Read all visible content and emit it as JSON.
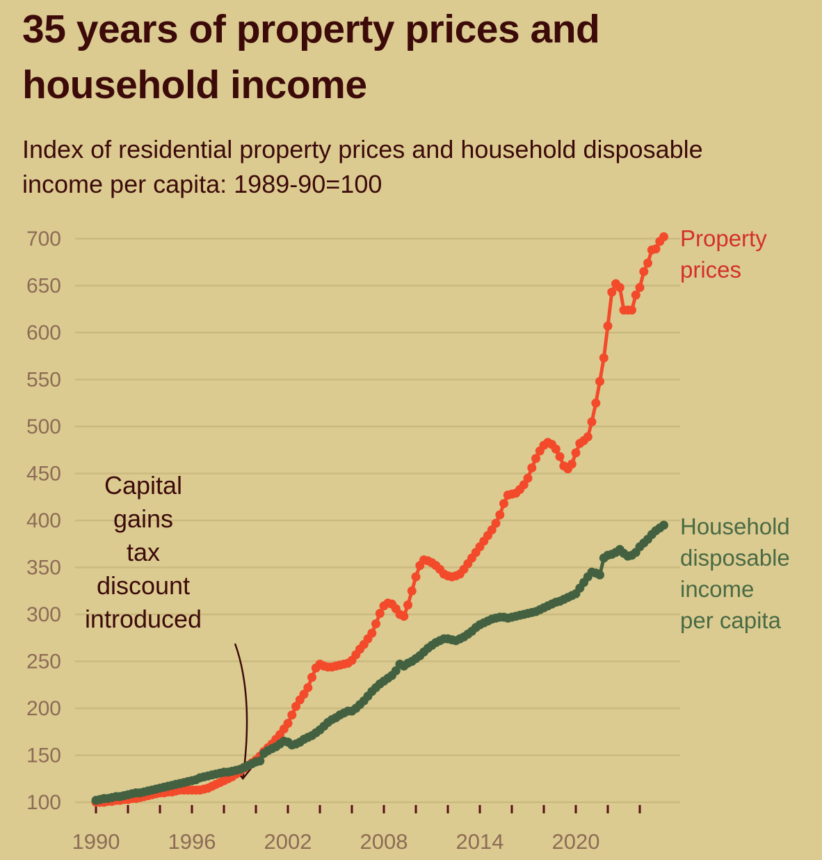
{
  "title": "35 years of property prices and household income",
  "subtitle": "Index of residential property prices and household disposable income per capita: 1989-90=100",
  "chart_data": {
    "type": "line",
    "title": "35 years of property prices and household income",
    "subtitle": "Index of residential property prices and household disposable income per capita: 1989-90=100",
    "xlabel": "",
    "ylabel": "",
    "xlim": [
      1989.2,
      2026.5
    ],
    "ylim": [
      100,
      700
    ],
    "yticks": [
      100,
      150,
      200,
      250,
      300,
      350,
      400,
      450,
      500,
      550,
      600,
      650,
      700
    ],
    "xticks_minor": [
      1990,
      1992,
      1994,
      1996,
      1998,
      2000,
      2002,
      2004,
      2006,
      2008,
      2010,
      2012,
      2014,
      2016,
      2018,
      2020,
      2022,
      2024
    ],
    "xtick_labels": [
      "1990",
      "1996",
      "2002",
      "2008",
      "2014",
      "2020"
    ],
    "xtick_label_years": [
      1990,
      1996,
      2002,
      2008,
      2014,
      2020
    ],
    "grid": "horizontal",
    "legend": "direct labels at right end of lines",
    "x_start": 1990.0,
    "x_step": 0.25,
    "series": [
      {
        "name": "Property prices",
        "label_lines": [
          "Property",
          "prices"
        ],
        "color": "#f24a2a",
        "label_color": "#d4302a",
        "values": [
          100,
          100,
          100,
          101,
          101,
          102,
          102,
          103,
          103,
          104,
          104,
          105,
          106,
          107,
          108,
          109,
          110,
          110,
          111,
          111,
          112,
          113,
          113,
          113,
          113,
          113,
          113,
          114,
          115,
          117,
          119,
          121,
          123,
          125,
          127,
          130,
          133,
          136,
          139,
          142,
          145,
          149,
          154,
          158,
          162,
          167,
          172,
          178,
          184,
          193,
          202,
          209,
          215,
          222,
          233,
          243,
          247,
          245,
          244,
          244,
          245,
          246,
          247,
          248,
          251,
          257,
          263,
          268,
          274,
          280,
          290,
          301,
          309,
          312,
          311,
          306,
          300,
          298,
          310,
          325,
          340,
          352,
          358,
          357,
          355,
          352,
          348,
          343,
          341,
          340,
          341,
          343,
          348,
          354,
          360,
          366,
          372,
          378,
          384,
          390,
          397,
          406,
          418,
          427,
          428,
          429,
          433,
          438,
          445,
          456,
          466,
          474,
          480,
          483,
          481,
          476,
          468,
          458,
          455,
          460,
          472,
          482,
          485,
          489,
          505,
          525,
          548,
          573,
          607,
          643,
          652,
          648,
          624,
          624,
          624,
          640,
          648,
          665,
          674,
          688,
          689,
          697,
          702
        ]
      },
      {
        "name": "Household disposable income per capita",
        "label_lines": [
          "Household",
          "disposable",
          "income",
          "per capita"
        ],
        "color": "#436140",
        "label_color": "#4a6a44",
        "values": [
          102,
          103,
          104,
          104,
          105,
          106,
          106,
          107,
          108,
          109,
          110,
          110,
          111,
          112,
          113,
          114,
          115,
          116,
          117,
          118,
          119,
          120,
          121,
          122,
          123,
          124,
          126,
          127,
          128,
          129,
          130,
          131,
          132,
          132,
          133,
          134,
          135,
          137,
          139,
          141,
          143,
          144,
          152,
          155,
          157,
          159,
          162,
          165,
          164,
          161,
          162,
          164,
          167,
          169,
          171,
          174,
          177,
          181,
          185,
          188,
          190,
          193,
          195,
          197,
          197,
          200,
          204,
          208,
          213,
          218,
          222,
          226,
          229,
          232,
          235,
          240,
          247,
          245,
          248,
          250,
          253,
          256,
          260,
          264,
          267,
          270,
          272,
          274,
          274,
          273,
          272,
          274,
          276,
          279,
          282,
          286,
          289,
          291,
          293,
          295,
          296,
          297,
          297,
          296,
          297,
          298,
          299,
          300,
          301,
          302,
          303,
          305,
          307,
          309,
          311,
          313,
          314,
          316,
          318,
          320,
          322,
          328,
          334,
          340,
          345,
          344,
          342,
          360,
          363,
          364,
          366,
          369,
          365,
          362,
          363,
          366,
          372,
          376,
          380,
          385,
          389,
          392,
          395
        ]
      }
    ],
    "annotations": [
      {
        "text_lines": [
          "Capital",
          "gains",
          "tax",
          "discount",
          "introduced"
        ],
        "points_to_year": 1999.75,
        "points_to_value": 140
      }
    ]
  }
}
